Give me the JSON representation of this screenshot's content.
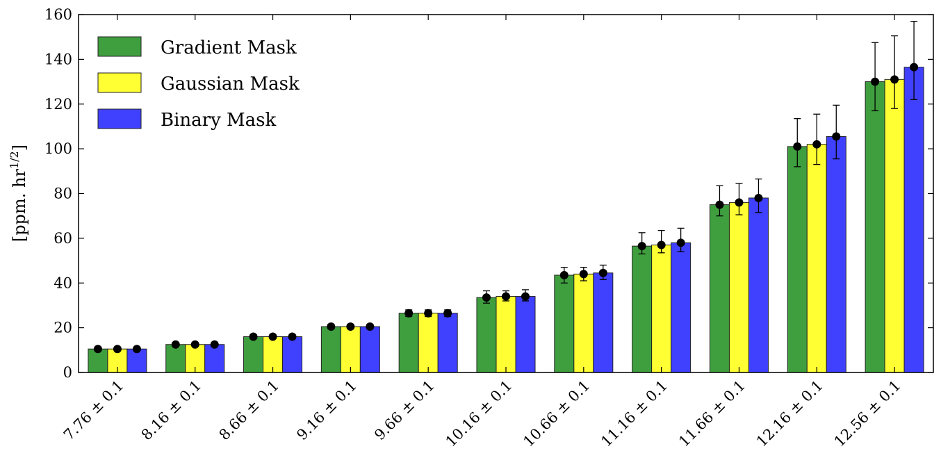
{
  "chart_data": {
    "type": "bar",
    "title": "",
    "xlabel": "",
    "ylabel_main": "[ppm. hr",
    "ylabel_sup": "1/2",
    "ylabel_close": "]",
    "ylim": [
      0,
      160
    ],
    "yticks": [
      0,
      20,
      40,
      60,
      80,
      100,
      120,
      140,
      160
    ],
    "grid": false,
    "legend_position": "top-left",
    "categories": [
      "7.76 ± 0.1",
      "8.16 ± 0.1",
      "8.66 ± 0.1",
      "9.16 ± 0.1",
      "9.66 ± 0.1",
      "10.16 ± 0.1",
      "10.66 ± 0.1",
      "11.16 ± 0.1",
      "11.66 ± 0.1",
      "12.16 ± 0.1",
      "12.56 ± 0.1"
    ],
    "series": [
      {
        "name": "Gradient Mask",
        "color": "#3f9f3f",
        "values": [
          10.5,
          12.5,
          16,
          20.5,
          26.5,
          33.5,
          43.5,
          56.5,
          75,
          101,
          130
        ],
        "err_low": [
          10.2,
          12.2,
          15.5,
          19.5,
          25,
          31,
          40,
          53,
          70,
          92,
          117
        ],
        "err_high": [
          11,
          13,
          16.5,
          21.5,
          28,
          36.5,
          47,
          62.5,
          83.5,
          113.5,
          147.5
        ]
      },
      {
        "name": "Gaussian Mask",
        "color": "#ffff33",
        "values": [
          10.5,
          12.5,
          16,
          20.5,
          26.5,
          34,
          44,
          57,
          76,
          102,
          131
        ],
        "err_low": [
          10.2,
          12.2,
          15.5,
          19.5,
          25,
          32,
          41,
          53.5,
          70.5,
          93,
          118
        ],
        "err_high": [
          11,
          13,
          16.5,
          21.5,
          28,
          36.5,
          47,
          63.5,
          84.5,
          115.5,
          150.5
        ]
      },
      {
        "name": "Binary Mask",
        "color": "#4040ff",
        "values": [
          10.5,
          12.5,
          16,
          20.5,
          26.5,
          34,
          44.5,
          58,
          78,
          105.5,
          136.5
        ],
        "err_low": [
          10.2,
          12.2,
          15.5,
          19.5,
          25,
          32,
          41.5,
          54,
          71.5,
          95.5,
          122
        ],
        "err_high": [
          11,
          13,
          16.5,
          21.5,
          28,
          37,
          48,
          64.5,
          86.5,
          119.5,
          157
        ]
      }
    ]
  }
}
